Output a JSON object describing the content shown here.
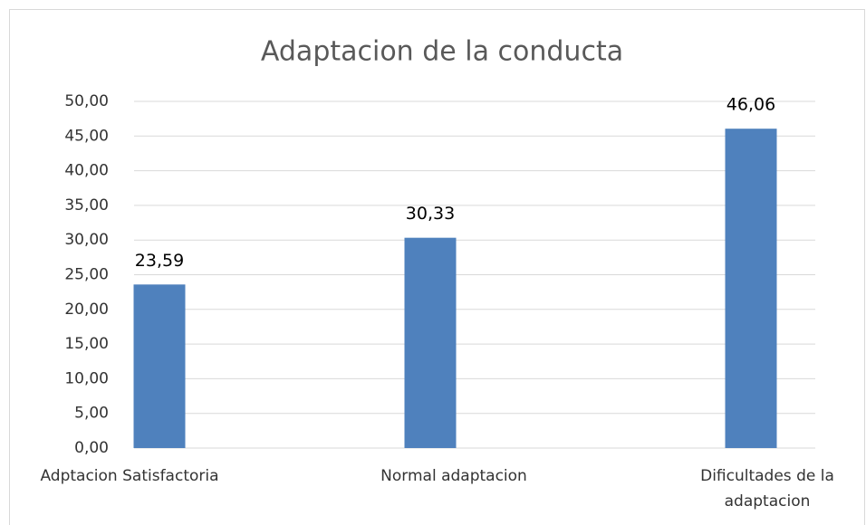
{
  "chart_data": {
    "type": "bar",
    "title": "Adaptacion de la conducta",
    "categories": [
      "Adptacion Satisfactoria",
      "Normal adaptacion",
      "Dificultades de la adaptacion"
    ],
    "values": [
      23.59,
      30.33,
      46.06
    ],
    "value_labels": [
      "23,59",
      "30,33",
      "46,06"
    ],
    "color": "#4f81bd",
    "ylim": [
      0,
      50
    ],
    "yticks": [
      {
        "value": 0,
        "label": "0,00"
      },
      {
        "value": 5,
        "label": "5,00"
      },
      {
        "value": 10,
        "label": "10,00"
      },
      {
        "value": 15,
        "label": "15,00"
      },
      {
        "value": 20,
        "label": "20,00"
      },
      {
        "value": 25,
        "label": "25,00"
      },
      {
        "value": 30,
        "label": "30,00"
      },
      {
        "value": 35,
        "label": "35,00"
      },
      {
        "value": 40,
        "label": "40,00"
      },
      {
        "value": 45,
        "label": "45,00"
      },
      {
        "value": 50,
        "label": "50,00"
      }
    ],
    "grid": true
  }
}
